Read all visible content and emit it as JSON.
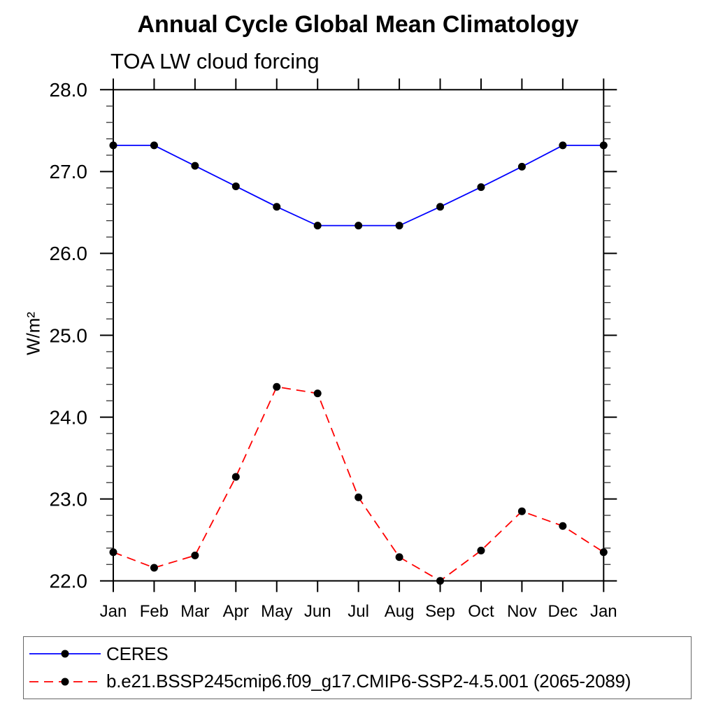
{
  "chart_data": {
    "type": "line",
    "title": "Annual Cycle Global Mean Climatology",
    "subtitle": "TOA LW cloud forcing",
    "ylabel": "W/m²",
    "xlabel": "",
    "x": [
      "Jan",
      "Feb",
      "Mar",
      "Apr",
      "May",
      "Jun",
      "Jul",
      "Aug",
      "Sep",
      "Oct",
      "Nov",
      "Dec",
      "Jan"
    ],
    "ylim": [
      22.0,
      28.0
    ],
    "ytick_step": 1.0,
    "yminor_step": 0.2,
    "grid": false,
    "legend_position": "bottom",
    "marker": "filled-circle",
    "marker_color": "#000000",
    "series": [
      {
        "name": "CERES",
        "color": "#0000FF",
        "style": "solid",
        "values": [
          27.32,
          27.32,
          27.07,
          26.82,
          26.57,
          26.34,
          26.34,
          26.34,
          26.57,
          26.81,
          27.06,
          27.32,
          27.32
        ]
      },
      {
        "name": "b.e21.BSSP245cmip6.f09_g17.CMIP6-SSP2-4.5.001 (2065-2089)",
        "color": "#FF0000",
        "style": "dashed",
        "values": [
          22.35,
          22.16,
          22.31,
          23.27,
          24.37,
          24.29,
          23.02,
          22.29,
          22.0,
          22.37,
          22.85,
          22.67,
          22.35
        ]
      }
    ]
  }
}
